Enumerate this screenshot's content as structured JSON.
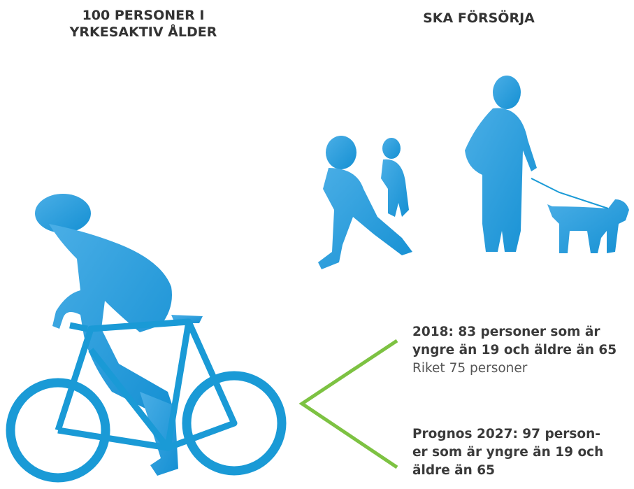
{
  "header": {
    "left_title_lines": [
      "100 PERSONER I",
      "YRKESAKTIV ÅLDER"
    ],
    "right_title": "SKA FÖRSÖRJA"
  },
  "stats": [
    {
      "label": "2018:",
      "lines": [
        " 83 personer som är",
        "yngre än 19 och äldre än 65"
      ],
      "note": "Riket 75 personer"
    },
    {
      "label": "Prognos 2027:",
      "lines": [
        " 97 person-",
        "er som är yngre än 19 och",
        "äldre än 65"
      ]
    }
  ]
}
